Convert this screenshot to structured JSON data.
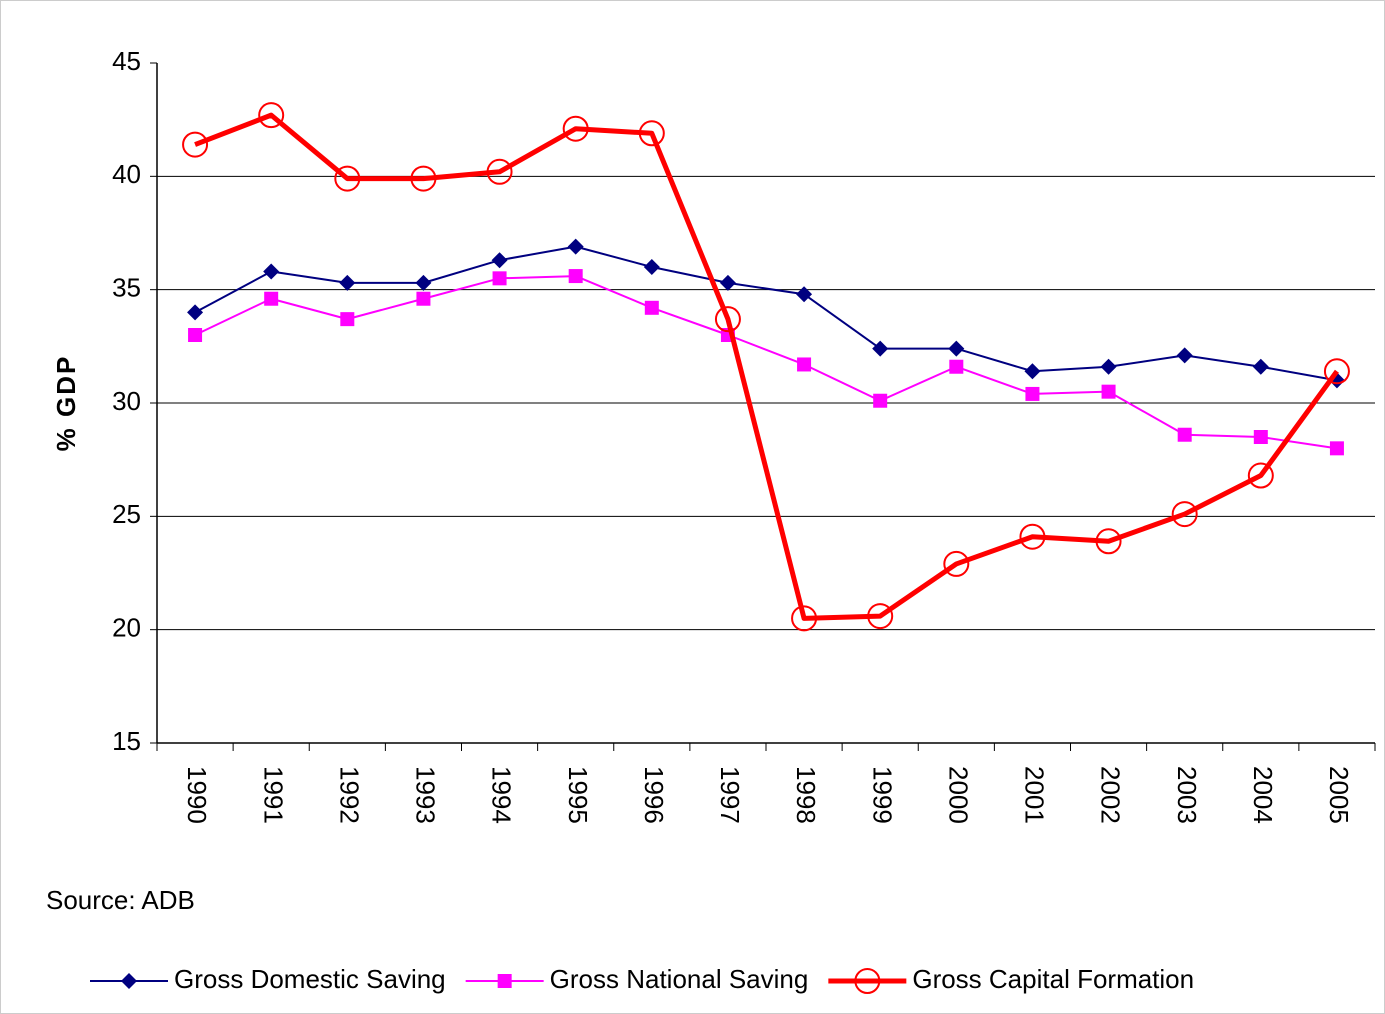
{
  "chart_data": {
    "type": "line",
    "y_label": "% GDP",
    "source": "Source: ADB",
    "categories": [
      "1990",
      "1991",
      "1992",
      "1993",
      "1994",
      "1995",
      "1996",
      "1997",
      "1998",
      "1999",
      "2000",
      "2001",
      "2002",
      "2003",
      "2004",
      "2005"
    ],
    "series": [
      {
        "name": "Gross Domestic Saving",
        "color": "#000080",
        "marker": "diamond",
        "line_width": 2,
        "values": [
          34.0,
          35.8,
          35.3,
          35.3,
          36.3,
          36.9,
          36.0,
          35.3,
          34.8,
          32.4,
          32.4,
          31.4,
          31.6,
          32.1,
          31.6,
          31.0
        ]
      },
      {
        "name": "Gross National Saving",
        "color": "#ff00ff",
        "marker": "square",
        "line_width": 2,
        "values": [
          33.0,
          34.6,
          33.7,
          34.6,
          35.5,
          35.6,
          34.2,
          33.0,
          31.7,
          30.1,
          31.6,
          30.4,
          30.5,
          28.6,
          28.5,
          28.0
        ]
      },
      {
        "name": "Gross Capital Formation",
        "color": "#ff0000",
        "marker": "circle",
        "line_width": 5,
        "values": [
          41.4,
          42.7,
          39.9,
          39.9,
          40.2,
          42.1,
          41.9,
          33.7,
          20.5,
          20.6,
          22.9,
          24.1,
          23.9,
          25.1,
          26.8,
          31.4
        ]
      }
    ],
    "ylim": [
      15,
      45
    ],
    "yticks": [
      15,
      20,
      25,
      30,
      35,
      40,
      45
    ],
    "grid": true,
    "legend": "bottom"
  }
}
